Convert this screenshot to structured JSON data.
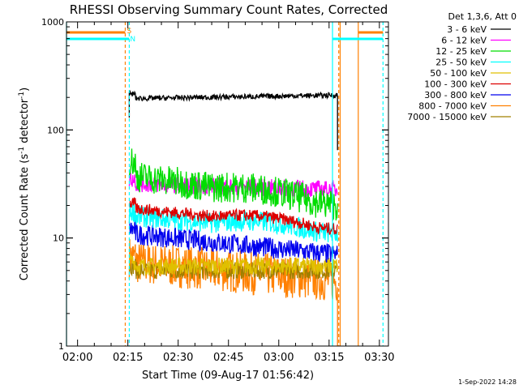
{
  "chart_data": {
    "type": "line",
    "title": "RHESSI Observing Summary Count Rates, Corrected",
    "xlabel": "Start Time (09-Aug-17 01:56:42)",
    "ylabel_main": "Corrected Count Rate (s",
    "ylabel_sup1": "-1",
    "ylabel_mid": " detector",
    "ylabel_sup2": "-1",
    "ylabel_end": ")",
    "x_range_minutes": [
      0,
      0.97
    ],
    "x_ticks": [
      {
        "label": "02:00",
        "t": 0.055
      },
      {
        "label": "02:15",
        "t": 0.305
      },
      {
        "label": "02:30",
        "t": 0.555
      },
      {
        "label": "02:45",
        "t": 0.805
      },
      {
        "label": "03:00",
        "t": 1.055
      },
      {
        "label": "03:15",
        "t": 1.305
      },
      {
        "label": "03:30",
        "t": 1.555
      }
    ],
    "y_scale": "log",
    "ylim": [
      1,
      1000
    ],
    "y_ticks": [
      "1",
      "10",
      "100",
      "1000"
    ],
    "legend_title": "Det 1,3,6, Att 0",
    "legend_position": "top-right",
    "series": [
      {
        "name": "3 - 6 keV",
        "color": "#000000",
        "level_start": 195,
        "level_end": 210,
        "noise": 0.015
      },
      {
        "name": "6 - 12 keV",
        "color": "#ff00ff",
        "level_start": 32,
        "level_end": 28,
        "noise": 0.05
      },
      {
        "name": "12 - 25 keV",
        "color": "#00dd00",
        "level_start": 38,
        "level_end": 20,
        "noise": 0.09
      },
      {
        "name": "25 - 50 keV",
        "color": "#00ffff",
        "level_start": 16,
        "level_end": 11,
        "noise": 0.06
      },
      {
        "name": "50 - 100 keV",
        "color": "#e0c000",
        "level_start": 5.5,
        "level_end": 5.5,
        "noise": 0.05
      },
      {
        "name": "100 - 300 keV",
        "color": "#dd0000",
        "level_start": 19,
        "level_end": 12,
        "noise": 0.035
      },
      {
        "name": "300 - 800 keV",
        "color": "#0000ee",
        "level_start": 11,
        "level_end": 7,
        "noise": 0.06
      },
      {
        "name": "800 - 7000 keV",
        "color": "#ff8000",
        "level_start": 6,
        "level_end": 4,
        "noise": 0.08
      },
      {
        "name": "7000 - 15000 keV",
        "color": "#a08000",
        "level_start": 5,
        "level_end": 5,
        "noise": 0.05
      }
    ],
    "flags": [
      {
        "label": "S",
        "color": "#ff8000"
      },
      {
        "label": "N",
        "color": "#00ffff"
      }
    ],
    "grid": false
  },
  "footer": {
    "timestamp": "1-Sep-2022 14:28"
  }
}
